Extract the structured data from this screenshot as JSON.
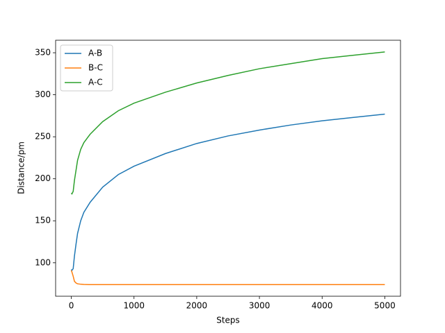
{
  "chart_data": {
    "type": "line",
    "x_label": "Steps",
    "y_label": "Distance/pm",
    "x": [
      0,
      10,
      30,
      50,
      75,
      100,
      150,
      200,
      300,
      500,
      750,
      1000,
      1500,
      2000,
      2500,
      3000,
      3500,
      4000,
      4500,
      5000
    ],
    "series": [
      {
        "name": "A-B",
        "color": "#1f77b4",
        "values": [
          92,
          91,
          93,
          108,
          122,
          135,
          150,
          160,
          172,
          190,
          205,
          215,
          230,
          242,
          251,
          258,
          264,
          269,
          273,
          277
        ]
      },
      {
        "name": "B-C",
        "color": "#ff7f0e",
        "values": [
          91,
          89,
          84,
          78,
          76,
          75,
          74.5,
          74.2,
          74,
          74,
          74,
          74,
          74,
          74,
          74,
          74,
          74,
          74,
          74,
          74
        ]
      },
      {
        "name": "A-C",
        "color": "#2ca02c",
        "values": [
          183,
          182,
          185,
          198,
          210,
          222,
          235,
          243,
          253,
          268,
          281,
          290,
          303,
          314,
          323,
          331,
          337,
          343,
          347,
          351
        ]
      }
    ],
    "xlim": [
      -250,
      5250
    ],
    "ylim": [
      60.2,
      364.9
    ],
    "xticks": [
      0,
      1000,
      2000,
      3000,
      4000,
      5000
    ],
    "yticks": [
      100,
      150,
      200,
      250,
      300,
      350
    ],
    "grid": false,
    "legend": "upper-left"
  }
}
